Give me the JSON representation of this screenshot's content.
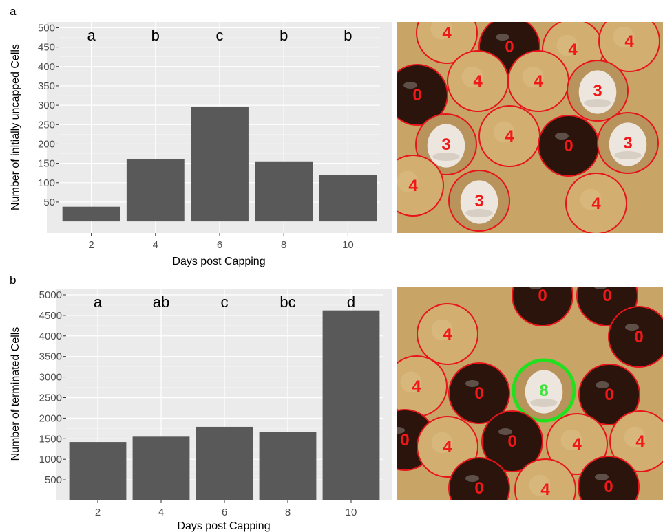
{
  "panels": [
    {
      "panel_label": "a",
      "chart_data": {
        "type": "bar",
        "categories": [
          "2",
          "4",
          "6",
          "8",
          "10"
        ],
        "values": [
          38,
          160,
          295,
          155,
          120
        ],
        "significance_letters": [
          "a",
          "b",
          "c",
          "b",
          "b"
        ],
        "xlabel": "Days post Capping",
        "ylabel": "Number of initially uncapped Cells",
        "yticks": [
          50,
          100,
          150,
          200,
          250,
          300,
          350,
          400,
          450,
          500
        ],
        "ylim": [
          -30,
          515
        ],
        "grid": true,
        "bar_color": "#595959",
        "panel_bg": "#ebebeb"
      },
      "photo": {
        "cells": [
          {
            "label": "4",
            "kind": "capped"
          },
          {
            "label": "0",
            "kind": "dark"
          },
          {
            "label": "4",
            "kind": "capped"
          },
          {
            "label": "4",
            "kind": "capped"
          },
          {
            "label": "0",
            "kind": "dark"
          },
          {
            "label": "4",
            "kind": "capped"
          },
          {
            "label": "4",
            "kind": "capped"
          },
          {
            "label": "3",
            "kind": "pupa"
          },
          {
            "label": "3",
            "kind": "pupa"
          },
          {
            "label": "4",
            "kind": "capped"
          },
          {
            "label": "0",
            "kind": "dark"
          },
          {
            "label": "3",
            "kind": "pupa"
          },
          {
            "label": "4",
            "kind": "capped"
          },
          {
            "label": "3",
            "kind": "pupa"
          },
          {
            "label": "4",
            "kind": "capped"
          }
        ]
      }
    },
    {
      "panel_label": "b",
      "chart_data": {
        "type": "bar",
        "categories": [
          "2",
          "4",
          "6",
          "8",
          "10"
        ],
        "values": [
          1420,
          1550,
          1790,
          1670,
          4620
        ],
        "significance_letters": [
          "a",
          "ab",
          "c",
          "bc",
          "d"
        ],
        "xlabel": "Days post Capping",
        "ylabel": "Number of terminated Cells",
        "yticks": [
          500,
          1000,
          1500,
          2000,
          2500,
          3000,
          3500,
          4000,
          4500,
          5000
        ],
        "ylim": [
          0,
          5150
        ],
        "grid": true,
        "bar_color": "#595959",
        "panel_bg": "#ebebeb"
      },
      "photo": {
        "cells": [
          {
            "label": "0",
            "kind": "dark"
          },
          {
            "label": "0",
            "kind": "dark"
          },
          {
            "label": "4",
            "kind": "capped"
          },
          {
            "label": "0",
            "kind": "dark"
          },
          {
            "label": "4",
            "kind": "capped"
          },
          {
            "label": "0",
            "kind": "dark"
          },
          {
            "label": "8",
            "kind": "pupa-highlight"
          },
          {
            "label": "0",
            "kind": "dark"
          },
          {
            "label": "0",
            "kind": "dark"
          },
          {
            "label": "4",
            "kind": "capped"
          },
          {
            "label": "0",
            "kind": "dark"
          },
          {
            "label": "4",
            "kind": "capped"
          },
          {
            "label": "4",
            "kind": "capped"
          },
          {
            "label": "0",
            "kind": "dark"
          },
          {
            "label": "4",
            "kind": "capped"
          },
          {
            "label": "0",
            "kind": "dark"
          }
        ]
      }
    }
  ],
  "colors": {
    "cell_outline": "#e8141c",
    "cell_label": "#f01818",
    "highlight_outline": "#22e01e",
    "highlight_label": "#3fe43a",
    "comb_wax": "#c8a466",
    "dark_cell": "#2a140c",
    "pupa": "#ece6de"
  }
}
